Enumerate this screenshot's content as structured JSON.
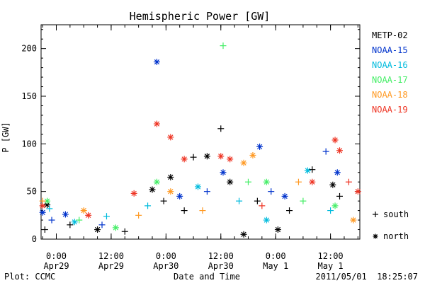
{
  "chart_data": {
    "type": "scatter",
    "title": "Hemispheric Power [GW]",
    "ylabel": "P [GW]",
    "xlabel": "Date and Time",
    "ylim": [
      0,
      225
    ],
    "xlim": [
      "2011-04-28 20:40",
      "2011-05-01 18:25"
    ],
    "yticks": [
      0,
      50,
      100,
      150,
      200
    ],
    "xticks": [
      {
        "time": "2011-04-29 00:00",
        "line1": "0:00",
        "line2": "Apr29"
      },
      {
        "time": "2011-04-29 12:00",
        "line1": "12:00",
        "line2": "Apr29"
      },
      {
        "time": "2011-04-30 00:00",
        "line1": "0:00",
        "line2": "Apr30"
      },
      {
        "time": "2011-04-30 12:00",
        "line1": "12:00",
        "line2": "Apr30"
      },
      {
        "time": "2011-05-01 00:00",
        "line1": "0:00",
        "line2": "May 1"
      },
      {
        "time": "2011-05-01 12:00",
        "line1": "12:00",
        "line2": "May 1"
      }
    ],
    "symbols": [
      {
        "marker": "+",
        "label": "south"
      },
      {
        "marker": "*",
        "label": "north"
      }
    ],
    "grid": false,
    "legend_position": "right",
    "series": [
      {
        "name": "METP-02",
        "color": "#000000",
        "points": [
          [
            "2011-04-28 21:30",
            10,
            "+"
          ],
          [
            "2011-04-28 22:00",
            36,
            "*"
          ],
          [
            "2011-04-29 03:00",
            15,
            "+"
          ],
          [
            "2011-04-29 09:00",
            10,
            "*"
          ],
          [
            "2011-04-29 15:00",
            8,
            "+"
          ],
          [
            "2011-04-29 21:00",
            52,
            "*"
          ],
          [
            "2011-04-29 23:30",
            40,
            "+"
          ],
          [
            "2011-04-30 01:00",
            65,
            "*"
          ],
          [
            "2011-04-30 04:00",
            30,
            "+"
          ],
          [
            "2011-04-30 06:00",
            86,
            "+"
          ],
          [
            "2011-04-30 09:00",
            87,
            "*"
          ],
          [
            "2011-04-30 12:00",
            116,
            "+"
          ],
          [
            "2011-04-30 14:00",
            60,
            "*"
          ],
          [
            "2011-04-30 17:00",
            5,
            "*"
          ],
          [
            "2011-04-30 20:00",
            40,
            "+"
          ],
          [
            "2011-05-01 00:30",
            10,
            "*"
          ],
          [
            "2011-05-01 03:00",
            30,
            "+"
          ],
          [
            "2011-05-01 08:00",
            73,
            "+"
          ],
          [
            "2011-05-01 12:30",
            57,
            "*"
          ],
          [
            "2011-05-01 14:00",
            45,
            "+"
          ]
        ]
      },
      {
        "name": "NOAA-15",
        "color": "#0033cc",
        "points": [
          [
            "2011-04-28 21:00",
            28,
            "*"
          ],
          [
            "2011-04-28 23:00",
            20,
            "+"
          ],
          [
            "2011-04-29 02:00",
            26,
            "*"
          ],
          [
            "2011-04-29 10:00",
            15,
            "+"
          ],
          [
            "2011-04-29 22:00",
            186,
            "*"
          ],
          [
            "2011-04-30 03:00",
            45,
            "*"
          ],
          [
            "2011-04-30 09:00",
            50,
            "+"
          ],
          [
            "2011-04-30 12:30",
            70,
            "*"
          ],
          [
            "2011-04-30 20:30",
            97,
            "*"
          ],
          [
            "2011-04-30 23:00",
            50,
            "+"
          ],
          [
            "2011-05-01 02:00",
            45,
            "*"
          ],
          [
            "2011-05-01 11:00",
            92,
            "+"
          ],
          [
            "2011-05-01 13:30",
            70,
            "*"
          ]
        ]
      },
      {
        "name": "NOAA-16",
        "color": "#00bbdd",
        "points": [
          [
            "2011-04-28 22:30",
            32,
            "+"
          ],
          [
            "2011-04-29 04:00",
            18,
            "*"
          ],
          [
            "2011-04-29 11:00",
            24,
            "+"
          ],
          [
            "2011-04-29 20:00",
            35,
            "+"
          ],
          [
            "2011-04-30 07:00",
            55,
            "*"
          ],
          [
            "2011-04-30 16:00",
            40,
            "+"
          ],
          [
            "2011-04-30 22:00",
            20,
            "*"
          ],
          [
            "2011-05-01 07:00",
            72,
            "*"
          ],
          [
            "2011-05-01 12:00",
            30,
            "+"
          ]
        ]
      },
      {
        "name": "NOAA-17",
        "color": "#44ee66",
        "points": [
          [
            "2011-04-28 22:00",
            40,
            "*"
          ],
          [
            "2011-04-29 05:00",
            20,
            "+"
          ],
          [
            "2011-04-29 13:00",
            12,
            "*"
          ],
          [
            "2011-04-29 22:00",
            60,
            "*"
          ],
          [
            "2011-04-30 12:30",
            203,
            "+"
          ],
          [
            "2011-04-30 18:00",
            60,
            "+"
          ],
          [
            "2011-04-30 22:00",
            60,
            "*"
          ],
          [
            "2011-05-01 06:00",
            40,
            "+"
          ],
          [
            "2011-05-01 13:00",
            35,
            "*"
          ]
        ]
      },
      {
        "name": "NOAA-18",
        "color": "#ff9922",
        "points": [
          [
            "2011-04-28 21:00",
            40,
            "+"
          ],
          [
            "2011-04-29 06:00",
            30,
            "*"
          ],
          [
            "2011-04-29 18:00",
            25,
            "+"
          ],
          [
            "2011-04-30 01:00",
            50,
            "*"
          ],
          [
            "2011-04-30 08:00",
            30,
            "+"
          ],
          [
            "2011-04-30 17:00",
            80,
            "*"
          ],
          [
            "2011-04-30 19:00",
            88,
            "*"
          ],
          [
            "2011-05-01 05:00",
            60,
            "+"
          ],
          [
            "2011-05-01 17:00",
            20,
            "*"
          ]
        ]
      },
      {
        "name": "NOAA-19",
        "color": "#ee3322",
        "points": [
          [
            "2011-04-28 21:00",
            35,
            "*"
          ],
          [
            "2011-04-29 07:00",
            25,
            "*"
          ],
          [
            "2011-04-29 17:00",
            48,
            "*"
          ],
          [
            "2011-04-29 22:00",
            121,
            "*"
          ],
          [
            "2011-04-30 01:00",
            107,
            "*"
          ],
          [
            "2011-04-30 04:00",
            84,
            "*"
          ],
          [
            "2011-04-30 12:00",
            87,
            "*"
          ],
          [
            "2011-04-30 14:00",
            84,
            "*"
          ],
          [
            "2011-04-30 21:00",
            35,
            "+"
          ],
          [
            "2011-05-01 08:00",
            60,
            "*"
          ],
          [
            "2011-05-01 13:00",
            104,
            "*"
          ],
          [
            "2011-05-01 14:00",
            93,
            "*"
          ],
          [
            "2011-05-01 16:00",
            60,
            "+"
          ],
          [
            "2011-05-01 18:00",
            50,
            "*"
          ]
        ]
      }
    ]
  },
  "footer": {
    "left": "Plot: CCMC",
    "right": "2011/05/01  18:25:07"
  }
}
